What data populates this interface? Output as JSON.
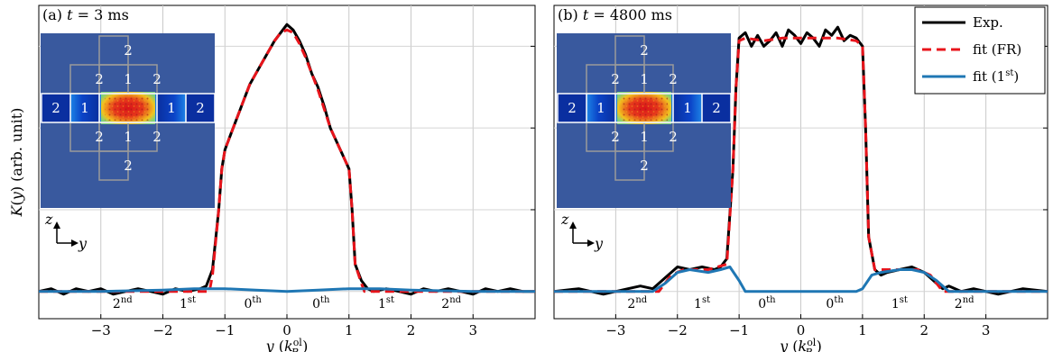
{
  "chart_data": [
    {
      "type": "line",
      "panel": "(a)",
      "title_prefix": "(a)",
      "title_var": "t",
      "title_value": " = 3 ms",
      "xlabel": "y (k",
      "xlabel_sup": "ol",
      "xlabel_sub": "R",
      "xlabel_close": ")",
      "ylabel": "K(y) (arb. unit)",
      "xlim": [
        -4,
        4
      ],
      "ylim": [
        -0.1,
        1.05
      ],
      "xticks": [
        -3,
        -2,
        -1,
        0,
        1,
        2,
        3
      ],
      "xtick_labels": [
        "−3",
        "−2",
        "−1",
        "0",
        "1",
        "2",
        "3"
      ],
      "orders": [
        {
          "base": "2",
          "sup": "nd",
          "x": -2.65
        },
        {
          "base": "1",
          "sup": "st",
          "x": -1.6
        },
        {
          "base": "0",
          "sup": "th",
          "x": -0.55
        },
        {
          "base": "0",
          "sup": "th",
          "x": 0.55
        },
        {
          "base": "1",
          "sup": "st",
          "x": 1.6
        },
        {
          "base": "2",
          "sup": "nd",
          "x": 2.65
        }
      ],
      "series": [
        {
          "name": "Exp.",
          "color": "#000000",
          "style": "solid",
          "x": [
            -4,
            -3.8,
            -3.6,
            -3.4,
            -3.2,
            -3.0,
            -2.8,
            -2.6,
            -2.4,
            -2.2,
            -2.0,
            -1.8,
            -1.6,
            -1.4,
            -1.3,
            -1.2,
            -1.1,
            -1.05,
            -1.0,
            -0.9,
            -0.8,
            -0.7,
            -0.6,
            -0.5,
            -0.4,
            -0.3,
            -0.2,
            -0.1,
            0.0,
            0.1,
            0.2,
            0.3,
            0.4,
            0.5,
            0.6,
            0.7,
            0.8,
            0.9,
            1.0,
            1.05,
            1.1,
            1.2,
            1.3,
            1.4,
            1.6,
            1.8,
            2.0,
            2.2,
            2.4,
            2.6,
            2.8,
            3.0,
            3.2,
            3.4,
            3.6,
            3.8,
            4.0
          ],
          "y": [
            0.0,
            0.01,
            -0.01,
            0.01,
            0.0,
            0.01,
            -0.01,
            0.0,
            0.01,
            0.0,
            -0.01,
            0.01,
            0.0,
            0.01,
            0.02,
            0.08,
            0.3,
            0.45,
            0.52,
            0.58,
            0.64,
            0.7,
            0.76,
            0.8,
            0.84,
            0.88,
            0.92,
            0.95,
            0.98,
            0.96,
            0.92,
            0.87,
            0.8,
            0.75,
            0.68,
            0.6,
            0.55,
            0.5,
            0.45,
            0.3,
            0.1,
            0.04,
            0.01,
            0.0,
            0.01,
            0.0,
            -0.01,
            0.01,
            0.0,
            0.01,
            0.0,
            -0.01,
            0.01,
            0.0,
            0.01,
            0.0,
            0.0
          ]
        },
        {
          "name": "fit (FR)",
          "color": "#e8141b",
          "style": "dashed",
          "x": [
            -4,
            -1.25,
            -1.2,
            -1.1,
            -1.05,
            -1.0,
            -0.9,
            -0.8,
            -0.7,
            -0.6,
            -0.5,
            -0.4,
            -0.3,
            -0.2,
            -0.1,
            0.0,
            0.1,
            0.2,
            0.3,
            0.4,
            0.5,
            0.6,
            0.7,
            0.8,
            0.9,
            1.0,
            1.05,
            1.1,
            1.2,
            1.25,
            4
          ],
          "y": [
            0.0,
            0.0,
            0.06,
            0.3,
            0.45,
            0.52,
            0.58,
            0.64,
            0.7,
            0.76,
            0.8,
            0.84,
            0.88,
            0.92,
            0.95,
            0.96,
            0.95,
            0.91,
            0.86,
            0.8,
            0.74,
            0.67,
            0.6,
            0.55,
            0.5,
            0.45,
            0.3,
            0.1,
            0.03,
            0.0,
            0.0
          ]
        },
        {
          "name": "fit (1st)",
          "color": "#1f77b4",
          "style": "solid",
          "x": [
            -4,
            -3.0,
            -2.0,
            -1.5,
            -1.0,
            -0.5,
            0.0,
            0.5,
            1.0,
            1.5,
            2.0,
            3.0,
            4
          ],
          "y": [
            0.0,
            0.0,
            0.005,
            0.01,
            0.01,
            0.005,
            0.0,
            0.005,
            0.01,
            0.01,
            0.005,
            0.0,
            0.0
          ]
        }
      ],
      "inset": {
        "nums": [
          "2",
          "2",
          "1",
          "2",
          "2",
          "1",
          "1",
          "2",
          "2",
          "1",
          "2",
          "2"
        ]
      },
      "axes_symbol": {
        "up": "z",
        "right": "y"
      }
    },
    {
      "type": "line",
      "panel": "(b)",
      "title_prefix": "(b)",
      "title_var": "t",
      "title_value": " = 4800 ms",
      "xlabel": "y (k",
      "xlabel_sup": "ol",
      "xlabel_sub": "R",
      "xlabel_close": ")",
      "ylabel": "",
      "xlim": [
        -4,
        4
      ],
      "ylim": [
        -0.1,
        1.05
      ],
      "xticks": [
        -3,
        -2,
        -1,
        0,
        1,
        2,
        3
      ],
      "xtick_labels": [
        "−3",
        "−2",
        "−1",
        "0",
        "1",
        "2",
        "3"
      ],
      "orders": [
        {
          "base": "2",
          "sup": "nd",
          "x": -2.65
        },
        {
          "base": "1",
          "sup": "st",
          "x": -1.6
        },
        {
          "base": "0",
          "sup": "th",
          "x": -0.55
        },
        {
          "base": "0",
          "sup": "th",
          "x": 0.55
        },
        {
          "base": "1",
          "sup": "st",
          "x": 1.6
        },
        {
          "base": "2",
          "sup": "nd",
          "x": 2.65
        }
      ],
      "series": [
        {
          "name": "Exp.",
          "color": "#000000",
          "style": "solid",
          "x": [
            -4,
            -3.6,
            -3.2,
            -2.8,
            -2.6,
            -2.4,
            -2.3,
            -2.2,
            -2.1,
            -2.0,
            -1.8,
            -1.6,
            -1.4,
            -1.3,
            -1.2,
            -1.1,
            -1.05,
            -1.0,
            -0.9,
            -0.8,
            -0.7,
            -0.6,
            -0.5,
            -0.4,
            -0.3,
            -0.2,
            -0.1,
            0.0,
            0.1,
            0.2,
            0.3,
            0.4,
            0.5,
            0.6,
            0.7,
            0.8,
            0.9,
            1.0,
            1.05,
            1.1,
            1.2,
            1.3,
            1.4,
            1.6,
            1.8,
            2.0,
            2.1,
            2.2,
            2.3,
            2.4,
            2.6,
            2.8,
            3.2,
            3.6,
            4.0
          ],
          "y": [
            0.0,
            0.01,
            -0.01,
            0.01,
            0.02,
            0.01,
            0.03,
            0.05,
            0.07,
            0.09,
            0.08,
            0.09,
            0.08,
            0.09,
            0.12,
            0.45,
            0.75,
            0.93,
            0.95,
            0.9,
            0.94,
            0.9,
            0.92,
            0.95,
            0.9,
            0.96,
            0.94,
            0.91,
            0.95,
            0.93,
            0.9,
            0.96,
            0.94,
            0.97,
            0.92,
            0.94,
            0.93,
            0.9,
            0.6,
            0.2,
            0.08,
            0.06,
            0.07,
            0.08,
            0.09,
            0.07,
            0.05,
            0.03,
            0.01,
            0.02,
            0.0,
            0.01,
            -0.01,
            0.01,
            0.0
          ]
        },
        {
          "name": "fit (FR)",
          "color": "#e8141b",
          "style": "dashed",
          "x": [
            -4,
            -2.3,
            -2.1,
            -1.9,
            -1.5,
            -1.2,
            -1.1,
            -1.05,
            -1.0,
            -0.9,
            -0.6,
            -0.3,
            0.0,
            0.3,
            0.6,
            0.9,
            1.0,
            1.05,
            1.1,
            1.2,
            1.5,
            1.9,
            2.1,
            2.3,
            4
          ],
          "y": [
            0.0,
            0.0,
            0.06,
            0.08,
            0.08,
            0.1,
            0.45,
            0.75,
            0.92,
            0.93,
            0.92,
            0.93,
            0.93,
            0.93,
            0.93,
            0.92,
            0.9,
            0.6,
            0.2,
            0.08,
            0.08,
            0.08,
            0.06,
            0.0,
            0.0
          ]
        },
        {
          "name": "fit (1st)",
          "color": "#1f77b4",
          "style": "solid",
          "x": [
            -4,
            -2.4,
            -2.2,
            -2.0,
            -1.8,
            -1.5,
            -1.3,
            -1.15,
            -1.0,
            -0.9,
            0.0,
            0.9,
            1.0,
            1.15,
            1.3,
            1.6,
            1.8,
            2.0,
            2.2,
            2.4,
            4
          ],
          "y": [
            0.0,
            0.0,
            0.03,
            0.07,
            0.08,
            0.07,
            0.08,
            0.09,
            0.04,
            0.0,
            0.0,
            0.0,
            0.01,
            0.06,
            0.07,
            0.08,
            0.08,
            0.07,
            0.04,
            0.0,
            0.0
          ]
        }
      ],
      "inset": {
        "nums": [
          "2",
          "2",
          "1",
          "2",
          "2",
          "1",
          "1",
          "2",
          "2",
          "1",
          "2",
          "2"
        ]
      },
      "axes_symbol": {
        "up": "z",
        "right": "y"
      },
      "legend": {
        "placement": "top-right",
        "entries": [
          "Exp.",
          "fit (FR)",
          "fit (1",
          "st",
          ")"
        ]
      }
    }
  ]
}
